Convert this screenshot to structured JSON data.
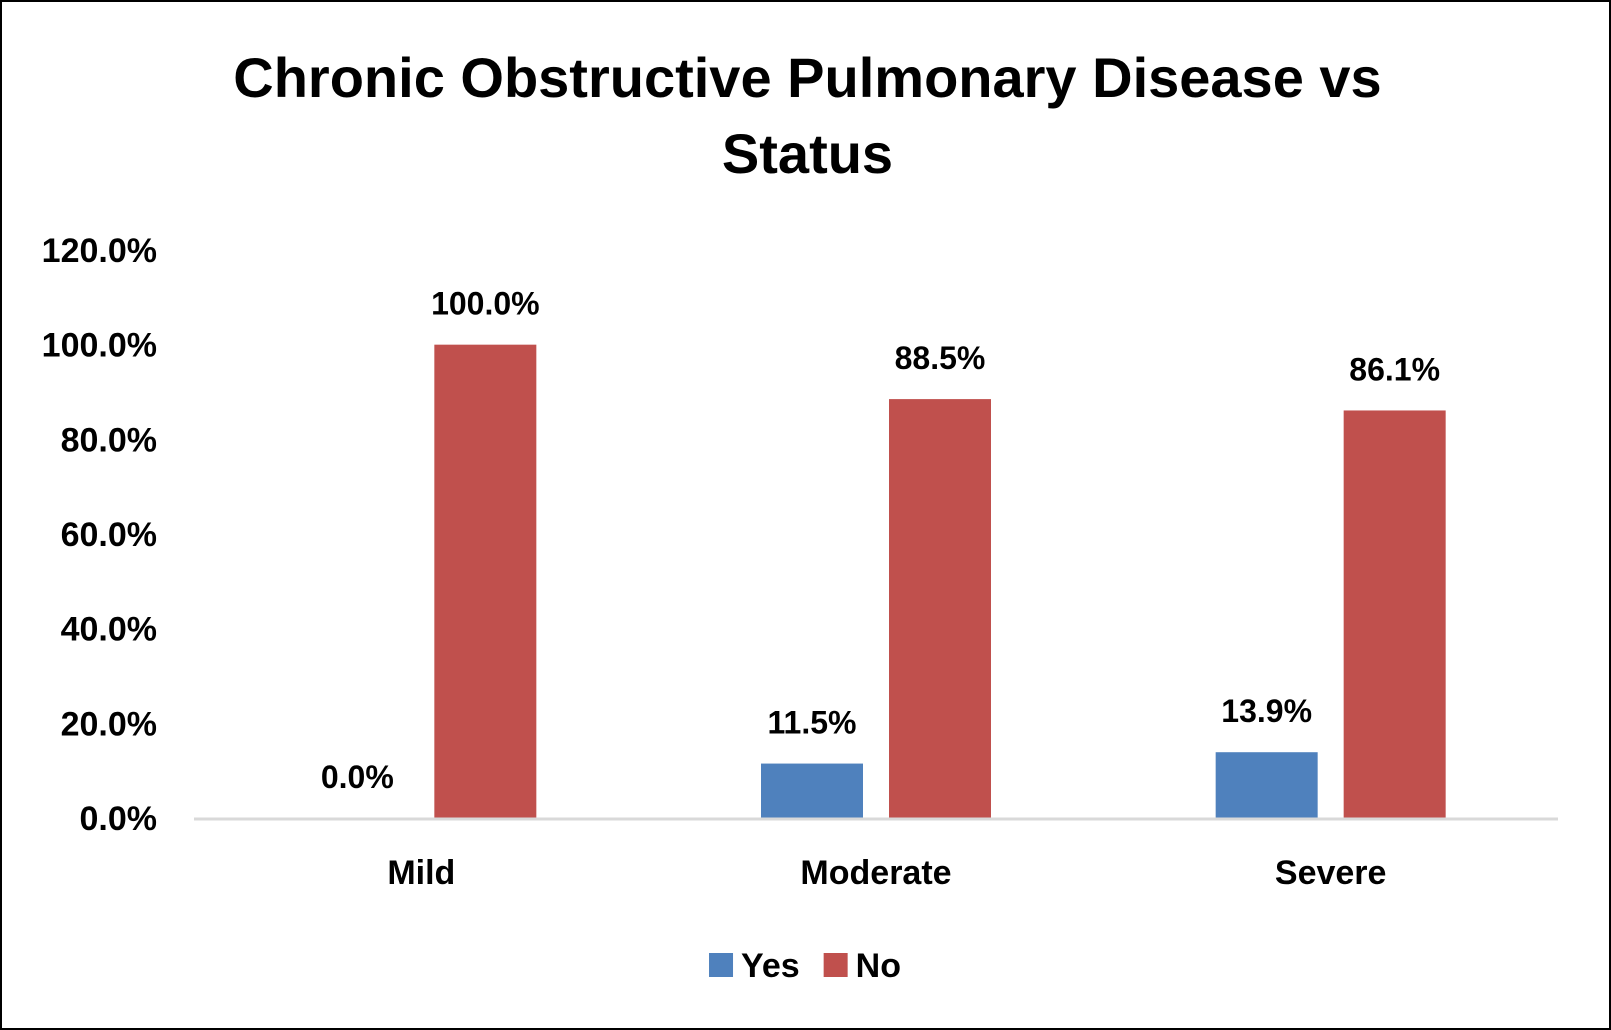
{
  "chart_data": {
    "type": "bar",
    "title": "Chronic Obstructive Pulmonary Disease vs Status",
    "xlabel": "",
    "ylabel": "",
    "categories": [
      "Mild",
      "Moderate",
      "Severe"
    ],
    "series": [
      {
        "name": "Yes",
        "values": [
          0.0,
          11.5,
          13.9
        ],
        "labels": [
          "0.0%",
          "11.5%",
          "13.9%"
        ],
        "color": "#4F81BD"
      },
      {
        "name": "No",
        "values": [
          100.0,
          88.5,
          86.1
        ],
        "labels": [
          "100.0%",
          "88.5%",
          "86.1%"
        ],
        "color": "#C0504D"
      }
    ],
    "ylim": [
      0,
      120
    ],
    "yticks": [
      0,
      20,
      40,
      60,
      80,
      100,
      120
    ],
    "ytick_labels": [
      "0.0%",
      "20.0%",
      "40.0%",
      "60.0%",
      "80.0%",
      "100.0%",
      "120.0%"
    ],
    "grid": false,
    "legend_position": "bottom",
    "axis_color": "#D9D9D9"
  }
}
